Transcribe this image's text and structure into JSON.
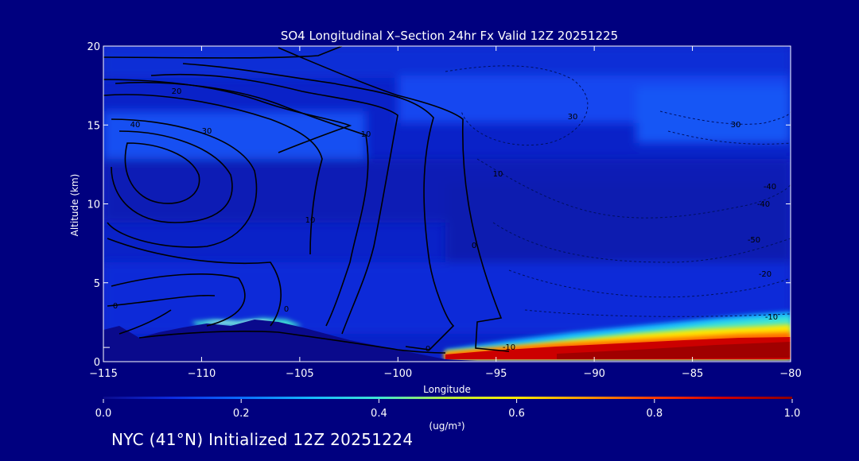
{
  "chart_data": {
    "type": "heatmap",
    "title": "SO4 Longitudinal X–Section 24hr  Fx Valid 12Z 20251225",
    "xlabel": "Longitude",
    "ylabel": "Altitude (km)",
    "xlim": [
      -115,
      -80
    ],
    "ylim": [
      0,
      20
    ],
    "xticks": [
      -115,
      -110,
      -105,
      -100,
      -95,
      -90,
      -85,
      -80
    ],
    "xtick_labels": [
      "−115",
      "−110",
      "−105",
      "−100",
      "−95",
      "−90",
      "−85",
      "−80"
    ],
    "yticks": [
      0,
      5,
      10,
      15,
      20
    ],
    "ytick_labels": [
      "0",
      "5",
      "10",
      "15",
      "20"
    ],
    "colorbar": {
      "range": [
        0.0,
        1.0
      ],
      "ticks": [
        0.0,
        0.2,
        0.4,
        0.6,
        0.8,
        1.0
      ],
      "tick_labels": [
        "0.0",
        "0.2",
        "0.4",
        "0.6",
        "0.8",
        "1.0"
      ],
      "unit_label": "(ug/m³)",
      "colormap": [
        "#0a0a8c",
        "#0d2be0",
        "#0a6cff",
        "#16b8ff",
        "#3fe6d2",
        "#b8ee3c",
        "#ffe800",
        "#ff9800",
        "#ff3a00",
        "#cc0000",
        "#8c0000"
      ]
    },
    "concentration_regions": [
      {
        "lon": [
          -115,
          -80
        ],
        "alt": [
          0,
          20
        ],
        "value": 0.08
      },
      {
        "lon": [
          -100,
          -80
        ],
        "alt": [
          14,
          19
        ],
        "value": 0.15
      },
      {
        "lon": [
          -115,
          -105
        ],
        "alt": [
          13,
          16
        ],
        "value": 0.2
      },
      {
        "lon": [
          -111,
          -104
        ],
        "alt": [
          2,
          3
        ],
        "value": 0.45
      },
      {
        "lon": [
          -88,
          -80
        ],
        "alt": [
          2.5,
          3.2
        ],
        "value": 0.45
      },
      {
        "lon": [
          -97,
          -80
        ],
        "alt": [
          0.3,
          1.8
        ],
        "value": 0.9
      }
    ],
    "contour_labels": [
      "20",
      "40",
      "30",
      "10",
      "10",
      "0",
      "0",
      "30",
      "10",
      "30",
      "-40",
      "-40",
      "-50",
      "-20",
      "-10",
      "-10",
      "0",
      "0"
    ]
  },
  "footer": "NYC (41°N) Initialized 12Z 20251224",
  "colors": {
    "background": "#00007f",
    "plot_base": "#0a22c8",
    "text": "#ffffff",
    "contour": "#000000"
  }
}
